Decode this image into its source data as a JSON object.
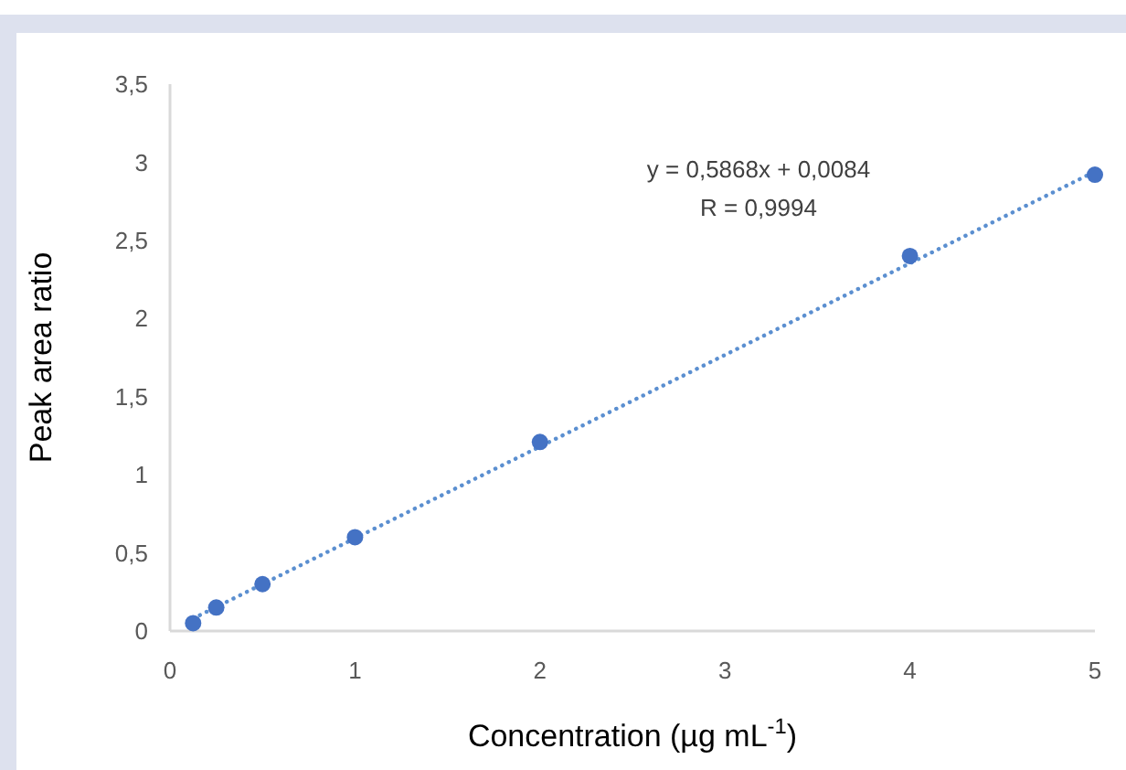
{
  "chart_data": {
    "type": "scatter",
    "xlabel": "Concentration (µg mL$^{-1}$)",
    "ylabel": "Peak area ratio",
    "xlim": [
      0,
      5
    ],
    "xticks": [
      0,
      1,
      2,
      3,
      4,
      5
    ],
    "ylim": [
      0,
      3.5
    ],
    "yticks": [
      {
        "value": 0,
        "label": "0"
      },
      {
        "value": 0.5,
        "label": "0,5"
      },
      {
        "value": 1,
        "label": "1"
      },
      {
        "value": 1.5,
        "label": "1,5"
      },
      {
        "value": 2,
        "label": "2"
      },
      {
        "value": 2.5,
        "label": "2,5"
      },
      {
        "value": 3,
        "label": "3"
      },
      {
        "value": 3.5,
        "label": "3,5"
      }
    ],
    "grid": false,
    "marker": "circle",
    "series": [
      {
        "color": "#4472c4",
        "x": [
          0.125,
          0.25,
          0.5,
          1,
          2,
          4,
          5
        ],
        "values": [
          0.05,
          0.15,
          0.3,
          0.6,
          1.21,
          2.4,
          2.92
        ]
      },
      {
        "type": "line",
        "color": "#5b8fd0",
        "line_style": "dotted",
        "marker": "none",
        "x": [
          0.125,
          5
        ],
        "values": [
          0.08,
          2.94
        ]
      }
    ],
    "annotations": [
      "y = 0,5868x + 0,0084",
      "R  = 0,9994"
    ]
  }
}
